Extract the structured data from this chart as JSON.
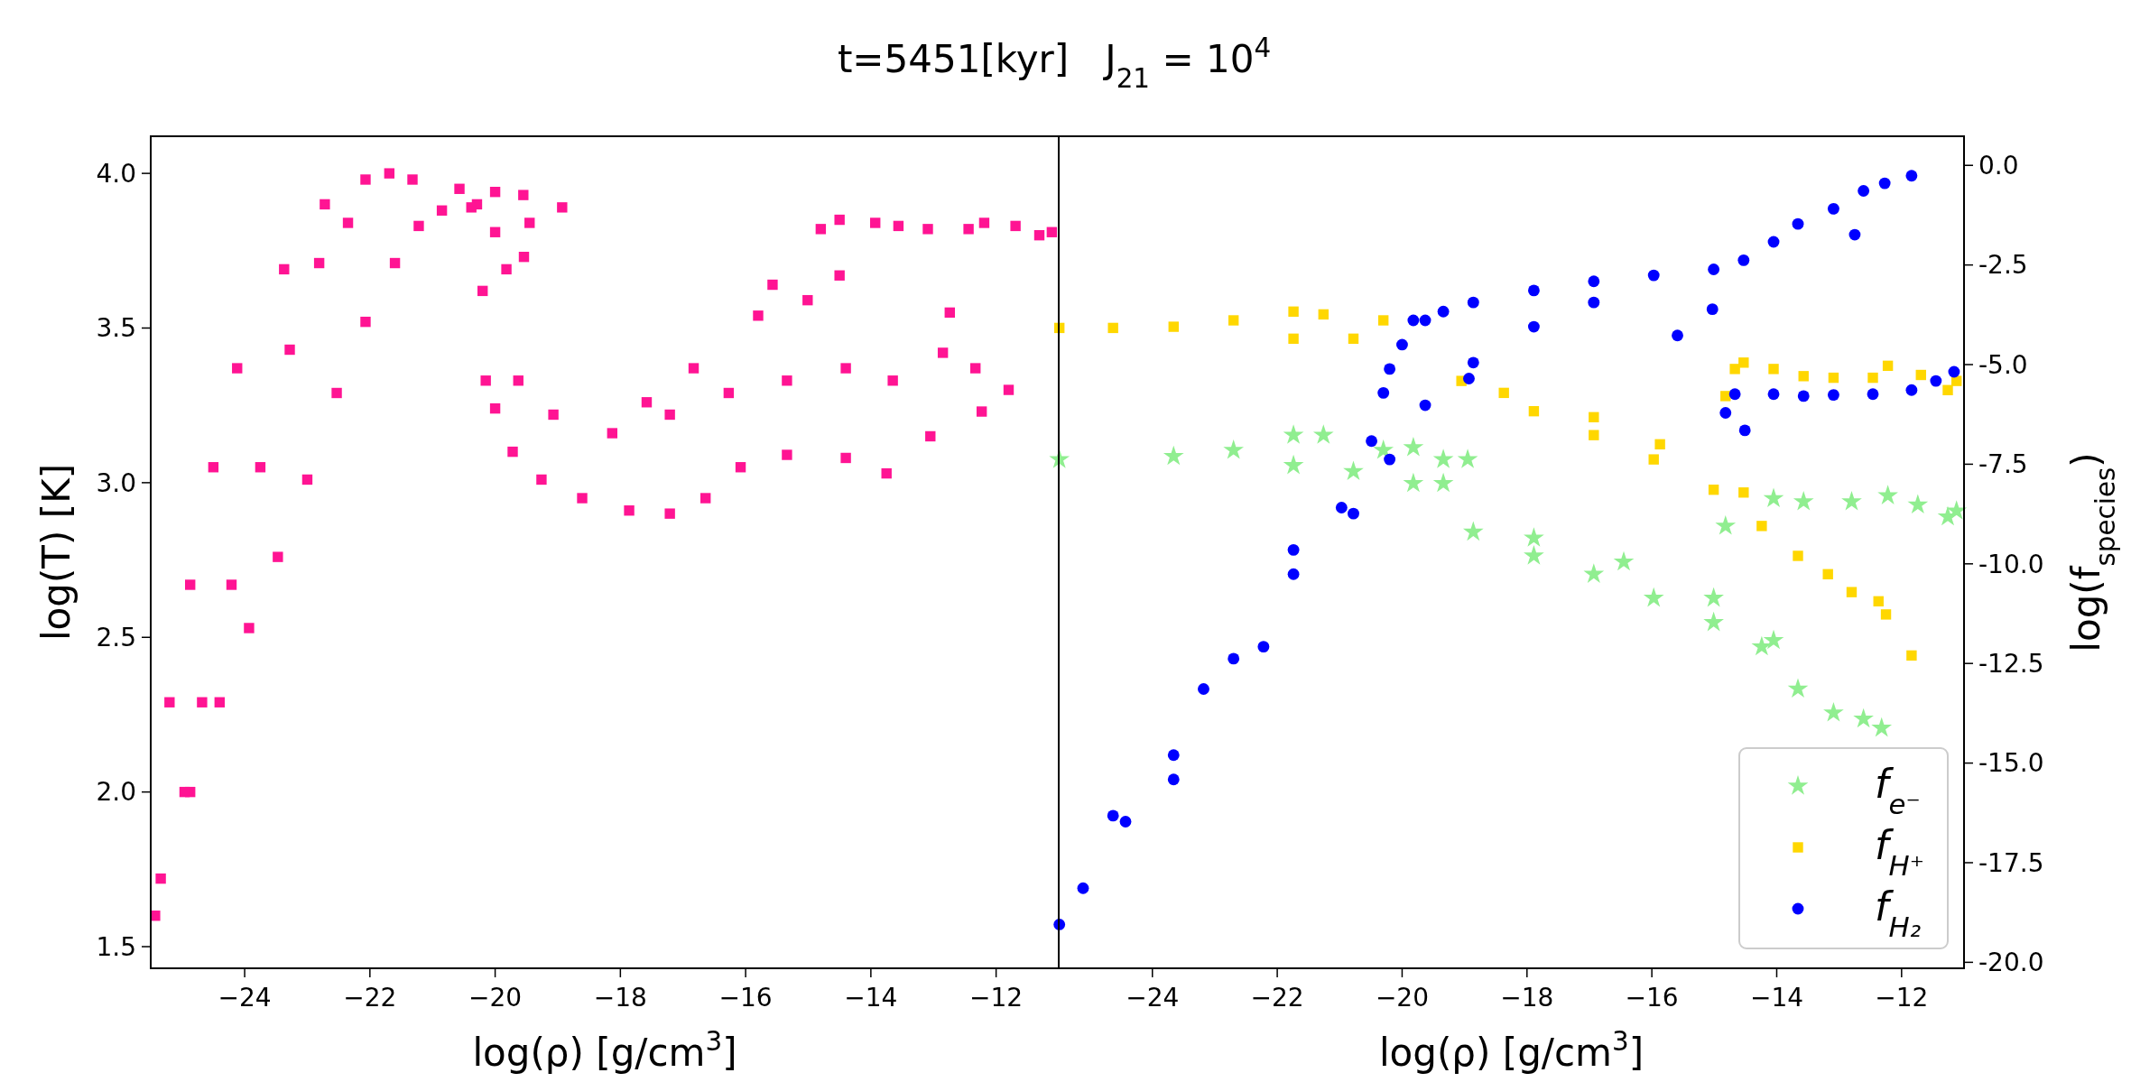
{
  "chart_data": [
    {
      "type": "scatter",
      "title": "t=5451[kyr]   J$_{21}$ = 10$^{4}$",
      "xlabel": "log(ρ) [g/cm$^{3}$]",
      "ylabel": "log(T) [K]",
      "xlim": [
        -25.5,
        -11.0
      ],
      "xticks": [
        {
          "value": -24,
          "label": "−24"
        },
        {
          "value": -22,
          "label": "−22"
        },
        {
          "value": -20,
          "label": "−20"
        },
        {
          "value": -18,
          "label": "−18"
        },
        {
          "value": -16,
          "label": "−16"
        },
        {
          "value": -14,
          "label": "−14"
        },
        {
          "value": -12,
          "label": "−12"
        }
      ],
      "ylim": [
        1.43,
        4.12
      ],
      "yticks": [
        1.5,
        {
          "value": 2,
          "label": "2.0"
        },
        2.5,
        {
          "value": 3,
          "label": "3.0"
        },
        3.5,
        {
          "value": 4,
          "label": "4.0"
        }
      ],
      "series": [
        {
          "color": "#ff1493",
          "marker": "square",
          "x": [
            -25.43,
            -25.2,
            -24.87,
            -24.5,
            -24.12,
            -23.37,
            -22.72,
            -22.07,
            -21.69,
            -21.32,
            -20.57,
            -20.29,
            -20.0,
            -19.55,
            -18.93,
            -25.34,
            -24.87,
            -24.4,
            -23.93,
            -23.47,
            -23.0,
            -22.53,
            -22.07,
            -21.6,
            -21.22,
            -20.85,
            -20.38,
            -24.21,
            -23.75,
            -23.28,
            -22.81,
            -22.35,
            -24.68,
            -24.96,
            -20.2,
            -20.15,
            -20.0,
            -19.72,
            -19.26,
            -18.61,
            -17.86,
            -17.21,
            -16.64,
            -16.08,
            -15.34,
            -14.4,
            -13.75,
            -19.63,
            -19.07,
            -18.13,
            -17.21,
            -16.27,
            -15.34,
            -14.4,
            -13.65,
            -15.57,
            -15.01,
            -14.5,
            -12.74,
            -11.8,
            -12.23,
            -12.85,
            -12.33,
            -15.8,
            -16.83,
            -17.58,
            -13.05,
            -14.8,
            -14.5,
            -13.93,
            -13.56,
            -13.09,
            -12.44,
            -12.19,
            -11.69,
            -11.31,
            -11.11,
            -20.0,
            -19.82,
            -19.45,
            -19.54
          ],
          "values": [
            1.6,
            2.29,
            2.67,
            3.05,
            3.37,
            3.69,
            3.9,
            3.98,
            4.0,
            3.98,
            3.95,
            3.9,
            3.94,
            3.93,
            3.89,
            1.72,
            2.0,
            2.29,
            2.53,
            2.76,
            3.01,
            3.29,
            3.52,
            3.71,
            3.83,
            3.88,
            3.89,
            2.67,
            3.05,
            3.43,
            3.71,
            3.84,
            2.29,
            2.0,
            3.62,
            3.33,
            3.24,
            3.1,
            3.01,
            2.95,
            2.91,
            2.9,
            2.95,
            3.05,
            3.09,
            3.08,
            3.03,
            3.33,
            3.22,
            3.16,
            3.22,
            3.29,
            3.33,
            3.37,
            3.33,
            3.64,
            3.59,
            3.67,
            3.55,
            3.3,
            3.23,
            3.42,
            3.37,
            3.54,
            3.37,
            3.26,
            3.15,
            3.82,
            3.85,
            3.84,
            3.83,
            3.82,
            3.82,
            3.84,
            3.83,
            3.8,
            3.81,
            3.81,
            3.69,
            3.84,
            3.73
          ]
        }
      ]
    },
    {
      "type": "scatter",
      "xlabel": "log(ρ) [g/cm$^{3}$]",
      "y2label": "log(f$_{species}$)",
      "xlim": [
        -25.5,
        -11.0
      ],
      "xticks": [
        {
          "value": -24,
          "label": "−24"
        },
        {
          "value": -22,
          "label": "−22"
        },
        {
          "value": -20,
          "label": "−20"
        },
        {
          "value": -18,
          "label": "−18"
        },
        {
          "value": -16,
          "label": "−16"
        },
        {
          "value": -14,
          "label": "−14"
        },
        {
          "value": -12,
          "label": "−12"
        }
      ],
      "y2lim": [
        -20.15,
        0.73
      ],
      "y2ticks": [
        {
          "value": 0,
          "label": "0.0"
        },
        -2.5,
        {
          "value": -5,
          "label": "-5.0"
        },
        -7.5,
        {
          "value": -10,
          "label": "-10.0"
        },
        -12.5,
        {
          "value": -15,
          "label": "-15.0"
        },
        -17.5,
        {
          "value": -20,
          "label": "-20.0"
        }
      ],
      "legend": "bottom right",
      "series": [
        {
          "name": "f$_{e⁻}$",
          "color": "#90ee90",
          "marker": "star",
          "axis": "y2",
          "x": [
            -25.49,
            -23.66,
            -22.7,
            -21.74,
            -21.26,
            -21.74,
            -20.78,
            -20.3,
            -19.82,
            -19.34,
            -18.95,
            -19.82,
            -18.86,
            -17.89,
            -16.93,
            -15.97,
            -15.01,
            -14.24,
            -13.66,
            -13.09,
            -12.61,
            -12.32,
            -19.34,
            -17.89,
            -16.45,
            -15.01,
            -14.05,
            -14.05,
            -13.57,
            -12.8,
            -12.22,
            -11.74,
            -11.26,
            -11.12,
            -14.82
          ],
          "values": [
            -7.38,
            -7.3,
            -7.15,
            -6.77,
            -6.77,
            -7.53,
            -7.68,
            -7.15,
            -7.08,
            -7.38,
            -7.38,
            -7.98,
            -9.2,
            -9.8,
            -10.26,
            -10.86,
            -11.47,
            -12.08,
            -13.14,
            -13.74,
            -13.89,
            -14.12,
            -7.98,
            -9.35,
            -9.95,
            -10.86,
            -11.92,
            -8.36,
            -8.44,
            -8.44,
            -8.29,
            -8.52,
            -8.82,
            -8.67,
            -9.05
          ]
        },
        {
          "name": "f$_{H⁺}$",
          "color": "#ffd700",
          "marker": "square",
          "axis": "y2",
          "x": [
            -25.49,
            -24.63,
            -23.66,
            -22.7,
            -21.74,
            -21.26,
            -21.74,
            -20.78,
            -20.3,
            -19.05,
            -17.89,
            -16.93,
            -15.97,
            -15.01,
            -14.24,
            -13.66,
            -13.18,
            -12.8,
            -12.37,
            -12.25,
            -11.84,
            -18.37,
            -16.93,
            -15.87,
            -14.53,
            -14.82,
            -14.67,
            -14.53,
            -14.05,
            -13.57,
            -13.09,
            -12.46,
            -12.22,
            -11.69,
            -11.26,
            -11.12
          ],
          "values": [
            -4.08,
            -4.08,
            -4.05,
            -3.89,
            -3.67,
            -3.74,
            -4.35,
            -4.35,
            -3.89,
            -5.41,
            -6.17,
            -6.77,
            -7.38,
            -8.14,
            -9.05,
            -9.8,
            -10.26,
            -10.71,
            -10.94,
            -11.27,
            -12.3,
            -5.71,
            -6.32,
            -7.0,
            -8.21,
            -5.79,
            -5.11,
            -4.95,
            -5.11,
            -5.29,
            -5.33,
            -5.33,
            -5.03,
            -5.26,
            -5.64,
            -5.41
          ]
        },
        {
          "name": "f$_{H₂}$",
          "color": "#0000ff",
          "marker": "circle",
          "axis": "y2",
          "x": [
            -25.49,
            -25.11,
            -24.43,
            -23.66,
            -22.7,
            -21.74,
            -20.97,
            -20.49,
            -20.2,
            -20.0,
            -19.63,
            -18.86,
            -17.89,
            -16.93,
            -15.97,
            -15.01,
            -14.53,
            -14.05,
            -13.66,
            -13.09,
            -12.61,
            -12.27,
            -11.84,
            -24.63,
            -23.18,
            -21.74,
            -20.3,
            -19.82,
            -19.34,
            -23.66,
            -22.22,
            -20.78,
            -20.2,
            -19.63,
            -18.86,
            -17.89,
            -16.93,
            -15.59,
            -15.03,
            -12.75,
            -18.93,
            -14.82,
            -14.51,
            -14.67,
            -14.05,
            -13.57,
            -13.09,
            -12.46,
            -11.84,
            -11.45,
            -11.16
          ],
          "values": [
            -19.05,
            -18.14,
            -16.47,
            -14.8,
            -12.38,
            -10.26,
            -8.59,
            -6.92,
            -5.11,
            -4.5,
            -3.89,
            -3.44,
            -3.14,
            -2.91,
            -2.76,
            -2.61,
            -2.38,
            -1.92,
            -1.47,
            -1.09,
            -0.64,
            -0.45,
            -0.26,
            -16.32,
            -13.14,
            -9.65,
            -5.71,
            -3.89,
            -3.67,
            -15.41,
            -12.08,
            -8.74,
            -7.38,
            -6.02,
            -4.95,
            -4.05,
            -3.44,
            -4.27,
            -3.61,
            -1.74,
            -5.35,
            -6.21,
            -6.65,
            -5.74,
            -5.74,
            -5.79,
            -5.76,
            -5.74,
            -5.64,
            -5.41,
            -5.18
          ]
        }
      ]
    }
  ]
}
